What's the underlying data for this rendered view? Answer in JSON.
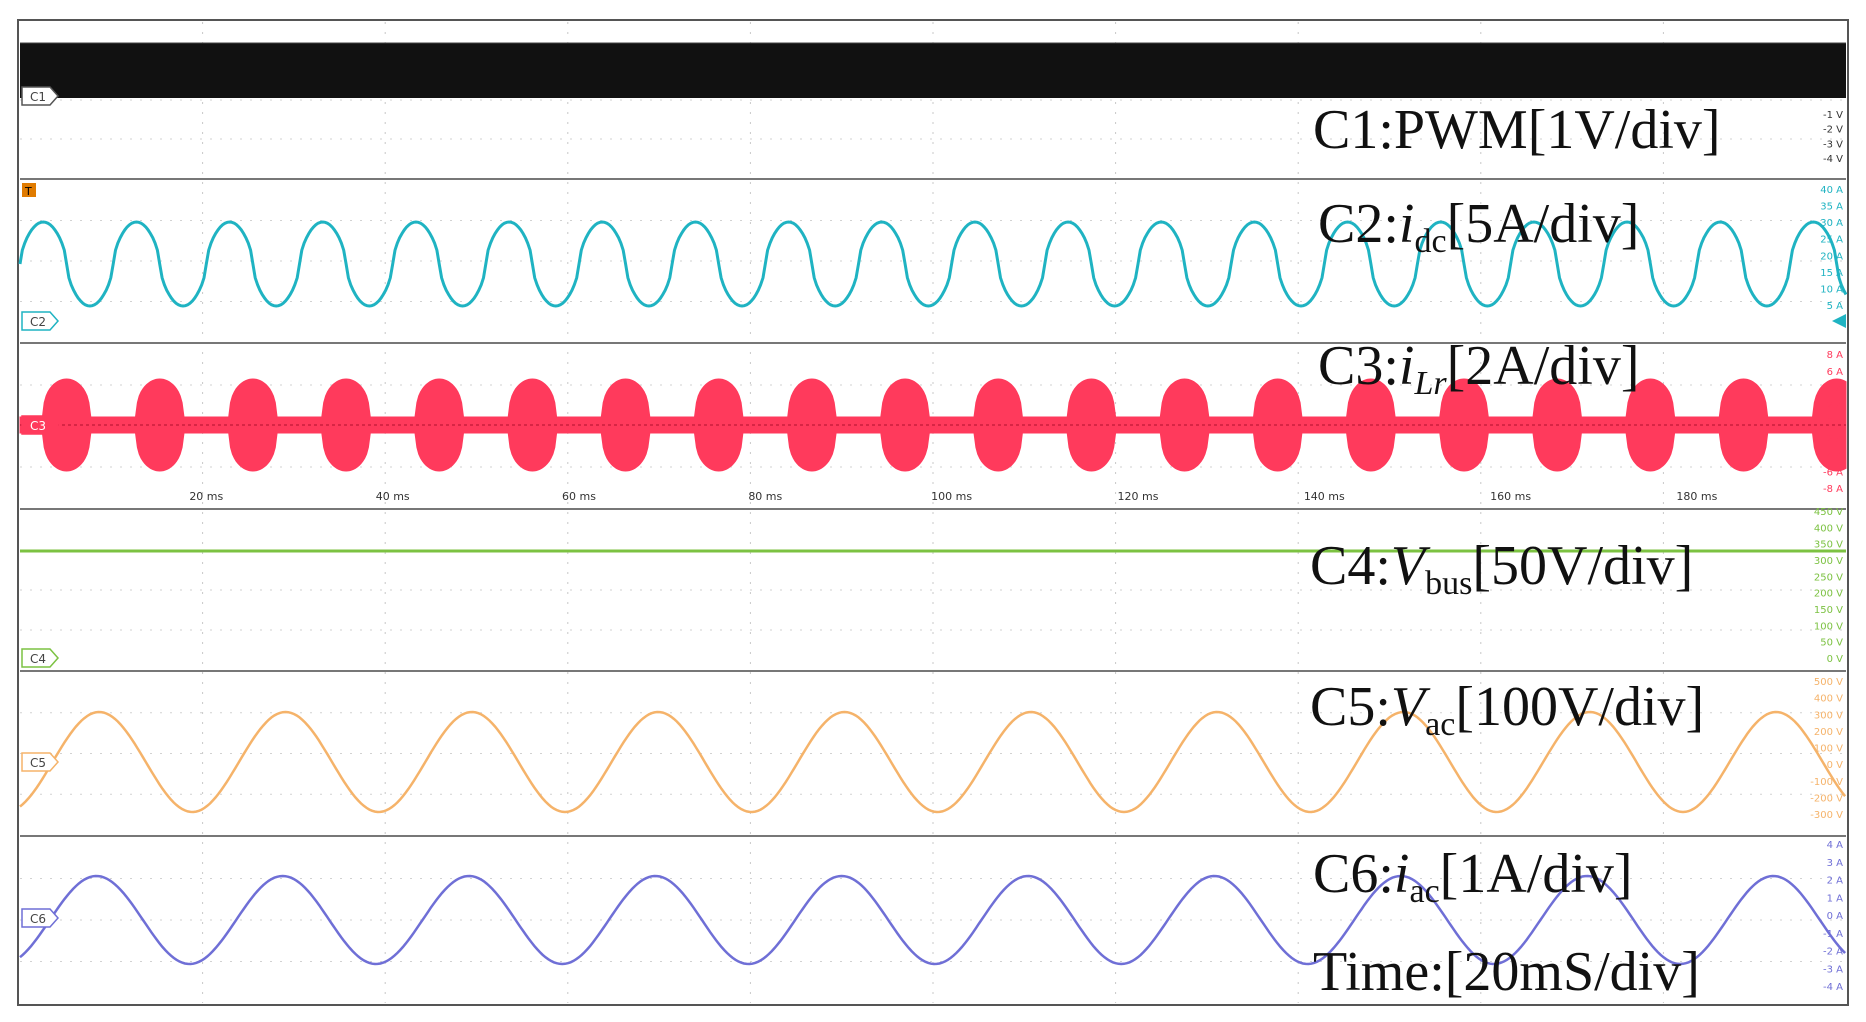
{
  "chart_data": {
    "type": "line",
    "instrument": "oscilloscope",
    "grid": true,
    "time_axis": {
      "ticks": [
        "20 ms",
        "40 ms",
        "60 ms",
        "80 ms",
        "100 ms",
        "120 ms",
        "140 ms",
        "160 ms",
        "180 ms"
      ],
      "tick_values_ms": [
        20,
        40,
        60,
        80,
        100,
        120,
        140,
        160,
        180
      ],
      "range_ms": [
        0,
        196
      ],
      "annotation": "Time:[20mS/div]"
    },
    "channels": [
      {
        "id": "C1",
        "marker": "C1",
        "label_prefix": "C1:PWM",
        "label_sub": "",
        "label_suffix": "[1V/div]",
        "color": "#111111",
        "waveform": "pwm",
        "description_values": {
          "level_high_V": 1,
          "level_low_V": 0
        },
        "ticks": [
          "-1 V",
          "-2 V",
          "-3 V",
          "-4 V"
        ]
      },
      {
        "id": "C2",
        "marker": "C2",
        "label_prefix": "C2:",
        "label_var": "i",
        "label_sub": "dc",
        "label_suffix": "[5A/div]",
        "color": "#1fb3c2",
        "waveform": "rectified",
        "frequency_hz": 100,
        "offset_A": 13,
        "amplitude_A": 9,
        "ticks": [
          "40 A",
          "35 A",
          "30 A",
          "25 A",
          "20 A",
          "15 A",
          "10 A",
          "5 A"
        ]
      },
      {
        "id": "C3",
        "marker": "C3",
        "label_prefix": "C3:",
        "label_var": "i",
        "label_sub": "Lr",
        "label_suffix": "[2A/div]",
        "color": "#ff3a5c",
        "waveform": "envelope",
        "frequency_hz": 100,
        "peak_A": 6,
        "min_A": 1,
        "ticks": [
          "8 A",
          "6 A",
          "4 A",
          "2 A",
          "0 A",
          "-2 A",
          "-4 A",
          "-6 A",
          "-8 A"
        ]
      },
      {
        "id": "C4",
        "marker": "C4",
        "label_prefix": "C4:",
        "label_var": "V",
        "label_sub": "bus",
        "label_suffix": "[50V/div]",
        "color": "#7cc242",
        "waveform": "dc",
        "level_V": 400,
        "ticks": [
          "450 V",
          "400 V",
          "350 V",
          "300 V",
          "250 V",
          "200 V",
          "150 V",
          "100 V",
          "50 V",
          "0 V"
        ]
      },
      {
        "id": "C5",
        "marker": "C5",
        "label_prefix": "C5:",
        "label_var": "V",
        "label_sub": "ac",
        "label_suffix": "[100V/div]",
        "color": "#f5b36a",
        "waveform": "sine",
        "frequency_hz": 50,
        "amplitude_V": 310,
        "ticks": [
          "500 V",
          "400 V",
          "300 V",
          "200 V",
          "100 V",
          "0 V",
          "-100 V",
          "-200 V",
          "-300 V"
        ]
      },
      {
        "id": "C6",
        "marker": "C6",
        "label_prefix": "C6:",
        "label_var": "i",
        "label_sub": "ac",
        "label_suffix": "[1A/div]",
        "color": "#6f6fd6",
        "waveform": "sine",
        "frequency_hz": 50,
        "amplitude_A": 2.6,
        "ticks": [
          "4 A",
          "3 A",
          "2 A",
          "1 A",
          "0 A",
          "-1 A",
          "-2 A",
          "-3 A",
          "-4 A"
        ]
      }
    ]
  }
}
